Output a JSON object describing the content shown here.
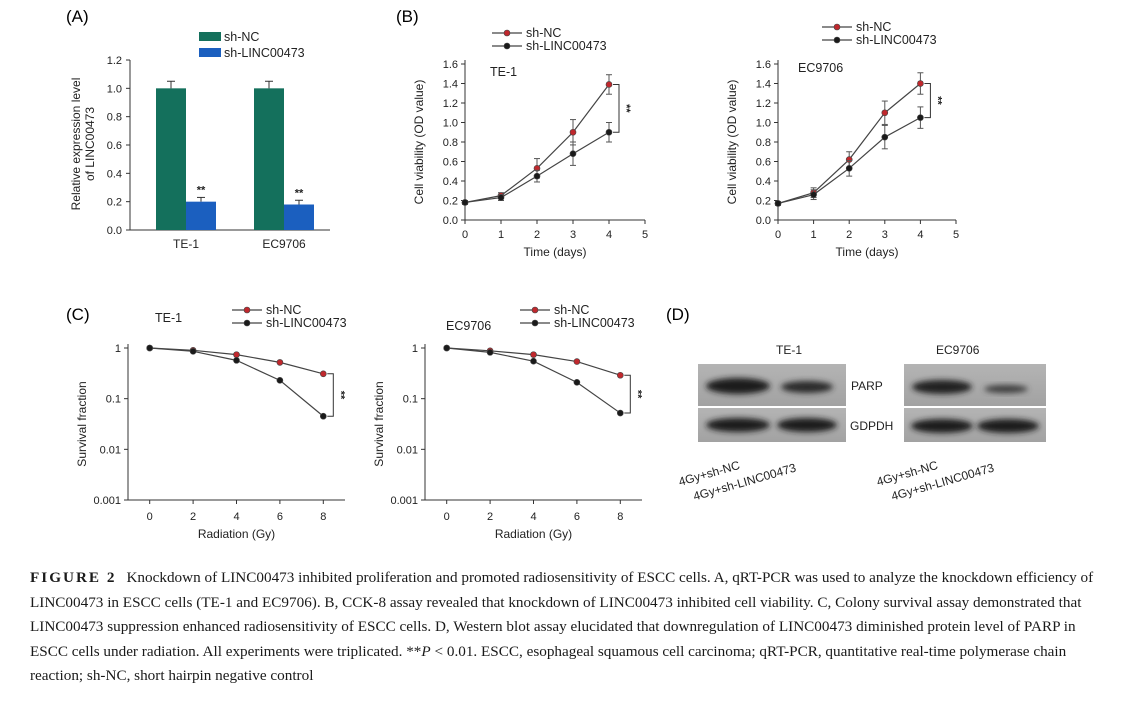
{
  "panels": {
    "A": "(A)",
    "B": "(B)",
    "C": "(C)",
    "D": "(D)"
  },
  "colors": {
    "sh_nc_bar": "#14705c",
    "sh_linc_bar": "#1b5fbf",
    "sh_nc_line": "#c0282d",
    "sh_linc_line": "#1a1a1a"
  },
  "legend": {
    "sh_nc": "sh-NC",
    "sh_linc": "sh-LINC00473"
  },
  "chart_data": [
    {
      "id": "A",
      "type": "bar",
      "ylabel": "Relative expression level of LINC00473",
      "ylabel_lines": [
        "Relative expression level",
        "of LINC00473"
      ],
      "categories": [
        "TE-1",
        "EC9706"
      ],
      "ylim": [
        0,
        1.2
      ],
      "yticks": [
        "0.0",
        "0.2",
        "0.4",
        "0.6",
        "0.8",
        "1.0",
        "1.2"
      ],
      "series": [
        {
          "name": "sh-NC",
          "values": [
            1.0,
            1.0
          ],
          "errors": [
            0.05,
            0.05
          ]
        },
        {
          "name": "sh-LINC00473",
          "values": [
            0.2,
            0.18
          ],
          "errors": [
            0.03,
            0.03
          ]
        }
      ],
      "annotations": [
        "**",
        "**"
      ]
    },
    {
      "id": "B-TE1",
      "type": "line",
      "title": "TE-1",
      "xlabel": "Time (days)",
      "ylabel": "Cell viability (OD value)",
      "x": [
        0,
        1,
        2,
        3,
        4
      ],
      "xticks": [
        "0",
        "1",
        "2",
        "3",
        "4",
        "5"
      ],
      "xlim": [
        0,
        5
      ],
      "ylim": [
        0,
        1.6
      ],
      "yticks": [
        "0.0",
        "0.2",
        "0.4",
        "0.6",
        "0.8",
        "1.0",
        "1.2",
        "1.4",
        "1.6"
      ],
      "series": [
        {
          "name": "sh-NC",
          "values": [
            0.18,
            0.25,
            0.53,
            0.9,
            1.39
          ],
          "errors": [
            0.02,
            0.03,
            0.1,
            0.13,
            0.1
          ]
        },
        {
          "name": "sh-LINC00473",
          "values": [
            0.18,
            0.23,
            0.45,
            0.68,
            0.9
          ],
          "errors": [
            0.02,
            0.03,
            0.06,
            0.12,
            0.1
          ]
        }
      ],
      "annotation": "**"
    },
    {
      "id": "B-EC9706",
      "type": "line",
      "title": "EC9706",
      "xlabel": "Time (days)",
      "ylabel": "Cell viability (OD value)",
      "x": [
        0,
        1,
        2,
        3,
        4
      ],
      "xticks": [
        "0",
        "1",
        "2",
        "3",
        "4",
        "5"
      ],
      "xlim": [
        0,
        5
      ],
      "ylim": [
        0,
        1.6
      ],
      "yticks": [
        "0.0",
        "0.2",
        "0.4",
        "0.6",
        "0.8",
        "1.0",
        "1.2",
        "1.4",
        "1.6"
      ],
      "series": [
        {
          "name": "sh-NC",
          "values": [
            0.17,
            0.28,
            0.62,
            1.1,
            1.4
          ],
          "errors": [
            0.02,
            0.05,
            0.08,
            0.12,
            0.11
          ]
        },
        {
          "name": "sh-LINC00473",
          "values": [
            0.17,
            0.26,
            0.53,
            0.85,
            1.05
          ],
          "errors": [
            0.02,
            0.05,
            0.08,
            0.12,
            0.11
          ]
        }
      ],
      "annotation": "**"
    },
    {
      "id": "C-TE1",
      "type": "line",
      "scale": "log",
      "title": "TE-1",
      "xlabel": "Radiation (Gy)",
      "ylabel": "Survival fraction",
      "x": [
        0,
        2,
        4,
        6,
        8
      ],
      "xticks": [
        "0",
        "2",
        "4",
        "6",
        "8"
      ],
      "xlim": [
        -1,
        9
      ],
      "ylim": [
        0.001,
        1
      ],
      "yticks": [
        "0.001",
        "0.01",
        "0.1",
        "1"
      ],
      "series": [
        {
          "name": "sh-NC",
          "values": [
            1.0,
            0.9,
            0.74,
            0.52,
            0.31
          ]
        },
        {
          "name": "sh-LINC00473",
          "values": [
            1.0,
            0.86,
            0.57,
            0.23,
            0.045
          ]
        }
      ],
      "annotation": "**"
    },
    {
      "id": "C-EC9706",
      "type": "line",
      "scale": "log",
      "title": "EC9706",
      "xlabel": "Radiation (Gy)",
      "ylabel": "Survival fraction",
      "x": [
        0,
        2,
        4,
        6,
        8
      ],
      "xticks": [
        "0",
        "2",
        "4",
        "6",
        "8"
      ],
      "xlim": [
        -1,
        9
      ],
      "ylim": [
        0.001,
        1
      ],
      "yticks": [
        "0.001",
        "0.01",
        "0.1",
        "1"
      ],
      "series": [
        {
          "name": "sh-NC",
          "values": [
            1.0,
            0.88,
            0.74,
            0.54,
            0.29
          ]
        },
        {
          "name": "sh-LINC00473",
          "values": [
            1.0,
            0.82,
            0.55,
            0.21,
            0.052
          ]
        }
      ],
      "annotation": "**"
    }
  ],
  "western_blot": {
    "cell_lines": [
      "TE-1",
      "EC9706"
    ],
    "proteins": [
      "PARP",
      "GDPDH"
    ],
    "lanes": [
      "4Gy+sh-NC",
      "4Gy+sh-LINC00473"
    ]
  },
  "caption": {
    "label": "FIGURE 2",
    "part1": "Knockdown of LINC00473 inhibited proliferation and promoted radiosensitivity of ESCC cells. A, qRT-PCR was used to analyze the knockdown efficiency of LINC00473 in ESCC cells (TE-1 and EC9706). B, CCK-8 assay revealed that knockdown of LINC00473 inhibited cell viability. C, Colony survival assay demonstrated that LINC00473 suppression enhanced radiosensitivity of ESCC cells. D, Western blot assay elucidated that downregulation of LINC00473 diminished protein level of PARP in ESCC cells under radiation. All experiments were triplicated. **",
    "p_symbol": "P",
    "part2": " < 0.01. ESCC, esophageal squamous cell carcinoma; qRT-PCR, quantitative real-time polymerase chain reaction; sh-NC, short hairpin negative control"
  }
}
